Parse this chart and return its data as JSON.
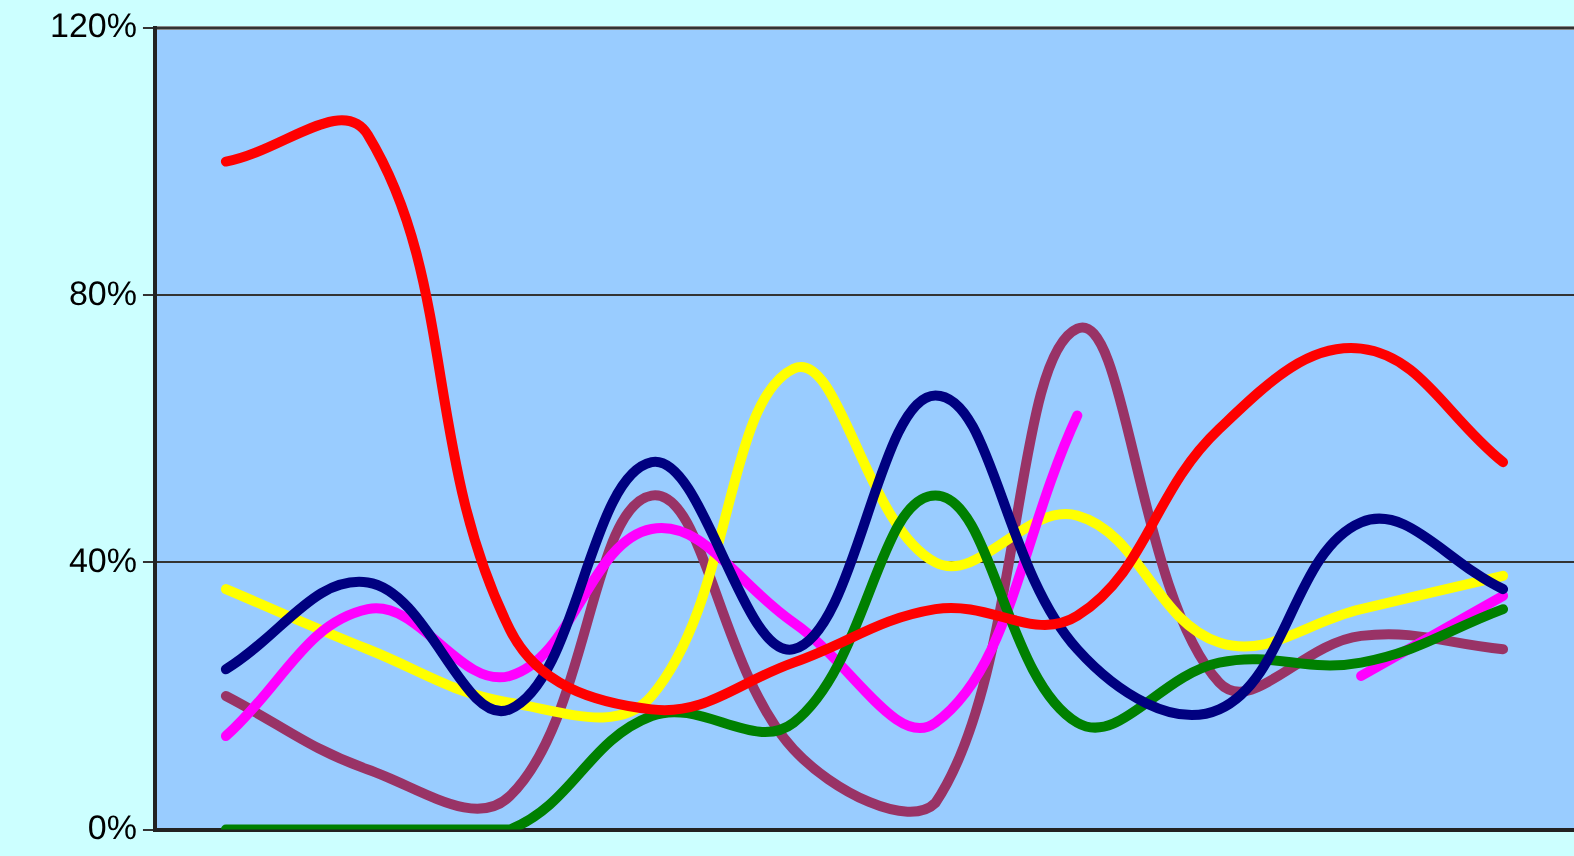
{
  "chart_data": {
    "type": "line",
    "categories": [
      null,
      null,
      null,
      null,
      null,
      null,
      null,
      null,
      null,
      null
    ],
    "series": [
      {
        "color": "#ff0000",
        "values": [
          100,
          104,
          30,
          18,
          25,
          33,
          32,
          60,
          72,
          55
        ]
      },
      {
        "color": "#000080",
        "values": [
          24,
          37,
          18,
          55,
          27,
          65,
          27,
          18,
          46,
          36
        ]
      },
      {
        "color": "#008000",
        "values": [
          0,
          0,
          0,
          17,
          16,
          50,
          16,
          25,
          25,
          33
        ]
      },
      {
        "color": "#ff00ff",
        "values": [
          14,
          33,
          23,
          45,
          31,
          16,
          62,
          null,
          23,
          35
        ]
      },
      {
        "color": "#ffff00",
        "values": [
          36,
          27,
          19,
          20,
          69,
          40,
          47,
          28,
          33,
          38
        ]
      },
      {
        "color": "#993366",
        "values": [
          20,
          9,
          5,
          50,
          12,
          4,
          75,
          22,
          29,
          27
        ]
      }
    ],
    "ylim": [
      0,
      120
    ],
    "yticks": [
      {
        "value": 0,
        "label": "0%"
      },
      {
        "value": 40,
        "label": "40%"
      },
      {
        "value": 80,
        "label": "80%"
      },
      {
        "value": 120,
        "label": "120%"
      }
    ],
    "grid": "y",
    "legend": false,
    "tick_labels": "y",
    "marker": "none",
    "line_style": "solid"
  }
}
